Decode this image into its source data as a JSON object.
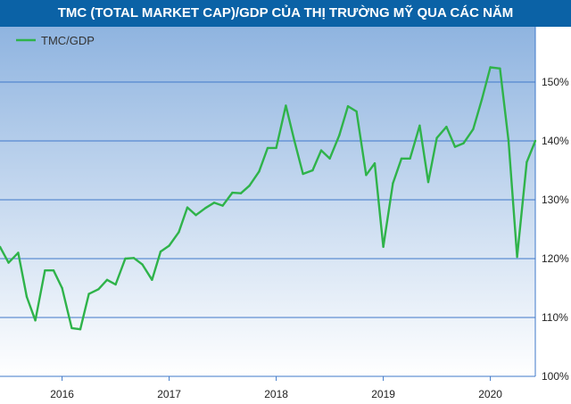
{
  "title": "TMC (TOTAL MARKET CAP)/GDP CỦA THỊ TRƯỜNG MỸ QUA CÁC NĂM",
  "colors": {
    "title_bg": "#0b62a6",
    "line": "#2fb34a",
    "grid": "#3f78c9",
    "plot_top": "#8fb4e0",
    "plot_bottom": "#ffffff"
  },
  "chart_data": {
    "type": "line",
    "title": "TMC (TOTAL MARKET CAP)/GDP CỦA THỊ TRƯỜNG MỸ QUA CÁC NĂM",
    "xlabel": "",
    "ylabel": "",
    "ylim": [
      100,
      160
    ],
    "yticks": [
      100,
      110,
      120,
      130,
      140,
      150
    ],
    "ytick_labels": [
      "100%",
      "110%",
      "120%",
      "130%",
      "140%",
      "150%"
    ],
    "xticks": [
      2016,
      2017,
      2018,
      2019,
      2020
    ],
    "xtick_labels": [
      "2016",
      "2017",
      "2018",
      "2019",
      "2020"
    ],
    "xlim": [
      2015.42,
      2020.42
    ],
    "grid": true,
    "legend_position": "top-left",
    "series": [
      {
        "name": "TMC/GDP",
        "x": [
          2015.42,
          2015.5,
          2015.59,
          2015.67,
          2015.75,
          2015.84,
          2015.92,
          2016.0,
          2016.09,
          2016.17,
          2016.25,
          2016.34,
          2016.42,
          2016.5,
          2016.59,
          2016.67,
          2016.75,
          2016.84,
          2016.92,
          2017.0,
          2017.09,
          2017.17,
          2017.25,
          2017.34,
          2017.42,
          2017.5,
          2017.59,
          2017.67,
          2017.75,
          2017.84,
          2017.92,
          2018.0,
          2018.09,
          2018.17,
          2018.25,
          2018.34,
          2018.42,
          2018.5,
          2018.59,
          2018.67,
          2018.75,
          2018.84,
          2018.92,
          2019.0,
          2019.09,
          2019.17,
          2019.25,
          2019.34,
          2019.42,
          2019.5,
          2019.59,
          2019.67,
          2019.75,
          2019.84,
          2019.92,
          2020.0,
          2020.09,
          2020.17,
          2020.25,
          2020.34,
          2020.42
        ],
        "values": [
          122.0,
          119.3,
          121.0,
          113.5,
          109.5,
          118.0,
          118.0,
          115.0,
          108.2,
          108.0,
          114.0,
          114.8,
          116.4,
          115.6,
          120.0,
          120.1,
          119.0,
          116.4,
          121.2,
          122.2,
          124.5,
          128.7,
          127.4,
          128.6,
          129.5,
          129.0,
          131.2,
          131.1,
          132.4,
          134.8,
          138.8,
          138.8,
          146.0,
          140.0,
          134.4,
          135.0,
          138.4,
          137.0,
          141.0,
          145.9,
          145.0,
          134.2,
          136.2,
          122.0,
          132.8,
          137.0,
          137.0,
          142.6,
          133.0,
          140.5,
          142.4,
          139.0,
          139.6,
          142.0,
          147.0,
          152.5,
          152.3,
          140.0,
          120.3,
          136.4,
          140.0
        ]
      }
    ]
  }
}
